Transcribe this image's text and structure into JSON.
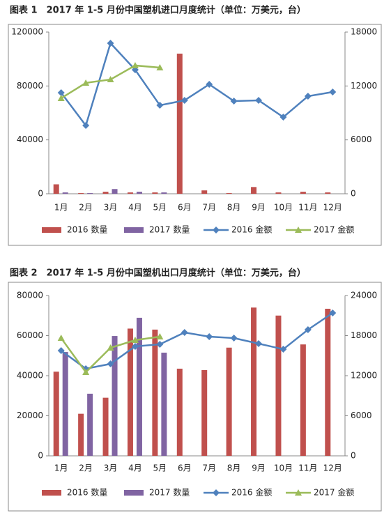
{
  "chart_data": [
    {
      "type": "combo",
      "title": "图表 1　2017 年 1-5 月份中国塑机进口月度统计（单位：万美元，台）",
      "categories": [
        "1月",
        "2月",
        "3月",
        "4月",
        "5月",
        "6月",
        "7月",
        "8月",
        "9月",
        "10月",
        "11月",
        "12月"
      ],
      "ylim": [
        0,
        120000
      ],
      "yticks": [
        0,
        40000,
        80000,
        120000
      ],
      "y2lim": [
        0,
        18000
      ],
      "y2ticks": [
        0,
        6000,
        12000,
        18000
      ],
      "series": [
        {
          "name": "2016 数量",
          "type": "bar",
          "color": "#c0504d",
          "values": [
            7000,
            500,
            1500,
            1000,
            1000,
            104000,
            2500,
            500,
            5000,
            1000,
            1500,
            1000
          ]
        },
        {
          "name": "2017 数量",
          "type": "bar",
          "color": "#8064a2",
          "values": [
            1000,
            500,
            3500,
            1500,
            1000,
            null,
            null,
            null,
            null,
            null,
            null,
            null
          ]
        },
        {
          "name": "2016 金额",
          "type": "line",
          "marker": "diamond",
          "axis": "y2",
          "color": "#4f81bd",
          "values": [
            11250,
            7600,
            16760,
            13800,
            9850,
            10400,
            12180,
            10320,
            10400,
            8530,
            10860,
            11330
          ]
        },
        {
          "name": "2017 金额",
          "type": "line",
          "marker": "triangle",
          "axis": "y2",
          "color": "#9bbb59",
          "values": [
            10630,
            12340,
            12720,
            14280,
            14040,
            null,
            null,
            null,
            null,
            null,
            null,
            null
          ]
        }
      ]
    },
    {
      "type": "combo",
      "title": "图表 2　2017 年 1-5 月份中国塑机出口月度统计（单位：万美元，台）",
      "categories": [
        "1月",
        "2月",
        "3月",
        "4月",
        "5月",
        "6月",
        "7月",
        "8月",
        "9月",
        "10月",
        "11月",
        "12月"
      ],
      "ylim": [
        0,
        80000
      ],
      "yticks": [
        0,
        20000,
        40000,
        60000,
        80000
      ],
      "y2lim": [
        0,
        24000
      ],
      "y2ticks": [
        0,
        6000,
        12000,
        18000,
        24000
      ],
      "series": [
        {
          "name": "2016 数量",
          "type": "bar",
          "color": "#c0504d",
          "values": [
            42000,
            21000,
            29000,
            63500,
            63000,
            43500,
            42800,
            54000,
            74000,
            70000,
            55600,
            73400
          ]
        },
        {
          "name": "2017 数量",
          "type": "bar",
          "color": "#8064a2",
          "values": [
            51800,
            31000,
            59800,
            68900,
            51500,
            null,
            null,
            null,
            null,
            null,
            null,
            null
          ]
        },
        {
          "name": "2016 金额",
          "type": "line",
          "marker": "diamond",
          "axis": "y2",
          "color": "#4f81bd",
          "values": [
            15760,
            13040,
            13770,
            16380,
            16700,
            18470,
            17840,
            17630,
            16800,
            15960,
            18890,
            21390
          ]
        },
        {
          "name": "2017 金额",
          "type": "line",
          "marker": "triangle",
          "axis": "y2",
          "color": "#9bbb59",
          "values": [
            17630,
            12520,
            16170,
            17320,
            17840,
            null,
            null,
            null,
            null,
            null,
            null,
            null
          ]
        }
      ]
    }
  ]
}
